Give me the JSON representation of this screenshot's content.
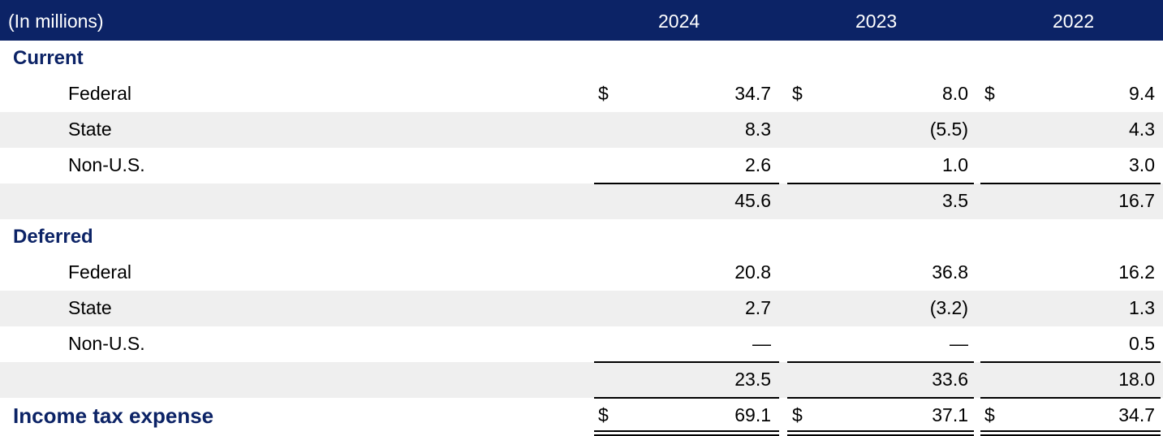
{
  "header": {
    "unit_label": "(In millions)",
    "years": [
      "2024",
      "2023",
      "2022"
    ]
  },
  "rows": [
    {
      "label": "Current",
      "type": "section",
      "values": [
        "",
        "",
        ""
      ],
      "dollar": false
    },
    {
      "label": "Federal",
      "type": "item",
      "values": [
        "34.7",
        "8.0",
        "9.4"
      ],
      "dollar": true
    },
    {
      "label": "State",
      "type": "item",
      "values": [
        "8.3",
        "(5.5)",
        "4.3"
      ],
      "dollar": false
    },
    {
      "label": "Non-U.S.",
      "type": "item",
      "values": [
        "2.6",
        "1.0",
        "3.0"
      ],
      "dollar": false
    },
    {
      "label": "",
      "type": "subtotal",
      "values": [
        "45.6",
        "3.5",
        "16.7"
      ],
      "dollar": false
    },
    {
      "label": "Deferred",
      "type": "section",
      "values": [
        "",
        "",
        ""
      ],
      "dollar": false
    },
    {
      "label": "Federal",
      "type": "item",
      "values": [
        "20.8",
        "36.8",
        "16.2"
      ],
      "dollar": false
    },
    {
      "label": "State",
      "type": "item",
      "values": [
        "2.7",
        "(3.2)",
        "1.3"
      ],
      "dollar": false
    },
    {
      "label": "Non-U.S.",
      "type": "item",
      "values": [
        "—",
        "—",
        "0.5"
      ],
      "dollar": false
    },
    {
      "label": "",
      "type": "subtotal",
      "values": [
        "23.5",
        "33.6",
        "18.0"
      ],
      "dollar": false
    },
    {
      "label": "Income tax expense",
      "type": "total",
      "values": [
        "69.1",
        "37.1",
        "34.7"
      ],
      "dollar": true
    }
  ],
  "currency_symbol": "$"
}
